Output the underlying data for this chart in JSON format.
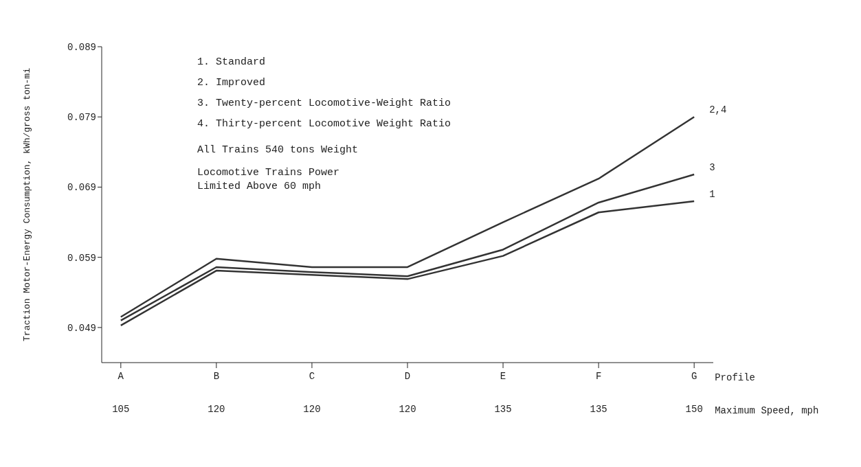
{
  "chart_data": {
    "type": "line",
    "ylabel": "Traction Motor-Energy Consumption, kWh/gross ton-mi",
    "xlabel": "Profile",
    "categories": [
      "A\n105",
      "B\n120",
      "C\n120",
      "D\n120",
      "E\n135",
      "F\n135",
      "G\n150"
    ],
    "series": [
      {
        "name": "2,4",
        "color": "#333333",
        "values": [
          0.0505,
          0.0588,
          0.0576,
          0.0576,
          0.064,
          0.0702,
          0.079
        ]
      },
      {
        "name": "3",
        "color": "#333333",
        "values": [
          0.05,
          0.0576,
          0.0569,
          0.0563,
          0.0601,
          0.0668,
          0.0708
        ]
      },
      {
        "name": "1",
        "color": "#333333",
        "values": [
          0.0493,
          0.0571,
          0.0565,
          0.0559,
          0.0592,
          0.0654,
          0.067
        ]
      }
    ],
    "ylim": [
      0.044,
      0.089
    ],
    "yticks": [
      0.049,
      0.059,
      0.069,
      0.079,
      0.089
    ],
    "marker": "none",
    "line_style": "solid",
    "annotations": [
      "Maximum Speed, mph",
      "1.  Standard",
      "2.  Improved",
      "3.  Twenty-percent Locomotive-Weight Ratio",
      "4.  Thirty-percent Locomotive Weight Ratio",
      "All Trains 540 tons Weight",
      "Locomotive Trains Power Limited Above 60 mph"
    ]
  }
}
